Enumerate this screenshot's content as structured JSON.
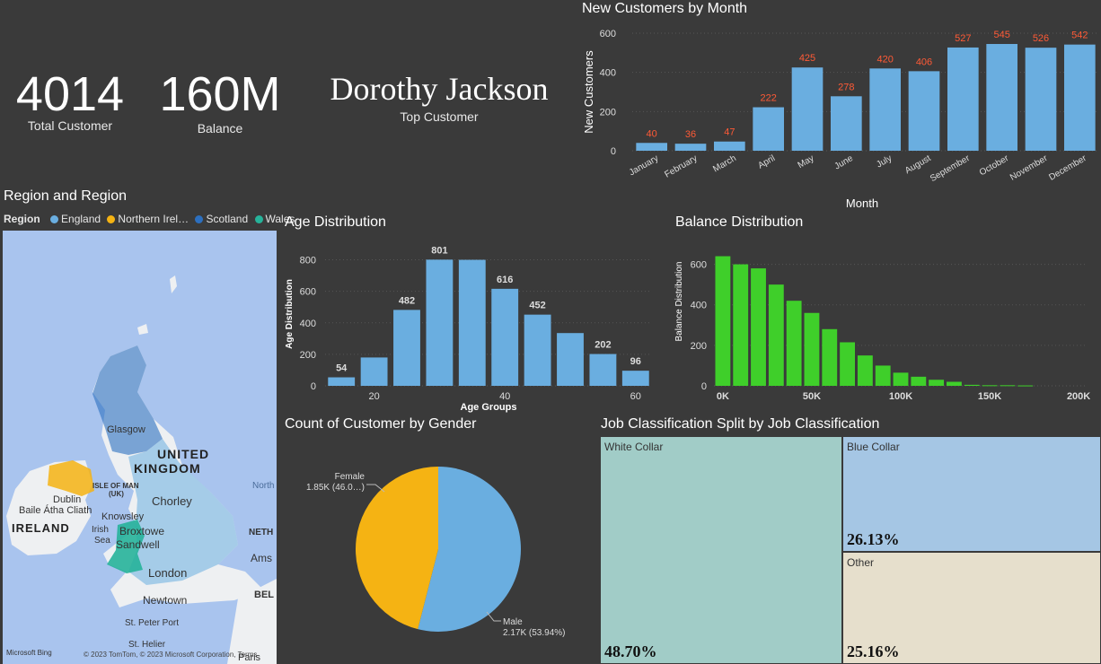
{
  "kpis": {
    "total_customer": {
      "value": "4014",
      "label": "Total Customer"
    },
    "balance": {
      "value": "160M",
      "label": "Balance"
    },
    "top_customer": {
      "value": "Dorothy Jackson",
      "label": "Top Customer"
    }
  },
  "map": {
    "title": "Region and Region",
    "legend_label": "Region",
    "legend": [
      {
        "name": "England",
        "color": "#6aaee0"
      },
      {
        "name": "Northern Irel…",
        "color": "#f5b313"
      },
      {
        "name": "Scotland",
        "color": "#2c6fbf"
      },
      {
        "name": "Wales",
        "color": "#26b39a"
      }
    ],
    "places": {
      "united": "UNITED",
      "kingdom": "KINGDOM",
      "ireland": "IRELAND",
      "glasgow": "Glasgow",
      "dublin": "Dublin",
      "baile": "Baile Átha Cliath",
      "isle": "ISLE OF MAN",
      "uk": "(UK)",
      "chorley": "Chorley",
      "knowsley": "Knowsley",
      "broxtowe": "Broxtowe",
      "sandwell": "Sandwell",
      "irish": "Irish",
      "sea": "Sea",
      "london": "London",
      "newtown": "Newtown",
      "stpeter": "St. Peter Port",
      "sthelier": "St. Helier",
      "north": "North",
      "neth": "NETH",
      "ams": "Ams",
      "bel": "BEL",
      "paris": "Paris"
    },
    "attribution": "© 2023 TomTom, © 2023 Microsoft Corporation, Terms",
    "bing": "Microsoft Bing"
  },
  "chart_data": [
    {
      "id": "new_customers",
      "type": "bar",
      "title": "New Customers by Month",
      "xlabel": "Month",
      "ylabel": "New Customers",
      "categories": [
        "January",
        "February",
        "March",
        "April",
        "May",
        "June",
        "July",
        "August",
        "September",
        "October",
        "November",
        "December"
      ],
      "values": [
        40,
        36,
        47,
        222,
        425,
        278,
        420,
        406,
        527,
        545,
        526,
        542
      ],
      "ylim": [
        0,
        600
      ],
      "yticks": [
        0,
        200,
        400,
        600
      ],
      "color": "#6aaee0",
      "label_color": "#ff5a36"
    },
    {
      "id": "age",
      "type": "bar",
      "title": "Age Distribution",
      "xlabel": "Age Groups",
      "ylabel": "Age Distribution",
      "x": [
        15,
        20,
        25,
        30,
        35,
        40,
        45,
        50,
        55,
        60
      ],
      "values": [
        54,
        180,
        482,
        801,
        800,
        616,
        452,
        335,
        202,
        96
      ],
      "data_labels": [
        "54",
        "",
        "482",
        "801",
        "",
        "616",
        "452",
        "",
        "202",
        "96"
      ],
      "ylim": [
        0,
        900
      ],
      "yticks": [
        0,
        200,
        400,
        600,
        800
      ],
      "xticks": [
        20,
        40,
        60
      ],
      "color": "#6aaee0"
    },
    {
      "id": "balance",
      "type": "bar",
      "title": "Balance Distribution",
      "xlabel": "",
      "ylabel": "Balance Distribution",
      "x": [
        0,
        10,
        20,
        30,
        40,
        50,
        60,
        70,
        80,
        90,
        100,
        110,
        120,
        130,
        140,
        150,
        160,
        170
      ],
      "values": [
        640,
        600,
        580,
        500,
        420,
        360,
        280,
        215,
        150,
        100,
        65,
        45,
        30,
        20,
        5,
        3,
        3,
        2
      ],
      "ylim": [
        0,
        700
      ],
      "yticks": [
        0,
        200,
        400,
        600
      ],
      "xticks": [
        "0K",
        "50K",
        "100K",
        "150K",
        "200K"
      ],
      "xtick_values": [
        0,
        50,
        100,
        150,
        200
      ],
      "color": "#3fcf2a"
    },
    {
      "id": "gender",
      "type": "pie",
      "title": "Count of Customer by Gender",
      "slices": [
        {
          "name": "Male",
          "value": 2.17,
          "label": "2.17K (53.94%)",
          "color": "#6aaee0"
        },
        {
          "name": "Female",
          "value": 1.85,
          "label": "1.85K (46.0…)",
          "color": "#f5b313"
        }
      ]
    },
    {
      "id": "job",
      "type": "treemap",
      "title": "Job Classification Split by Job Classification",
      "items": [
        {
          "name": "White Collar",
          "value": 48.7,
          "label": "48.70%",
          "color": "#a1ccc7"
        },
        {
          "name": "Blue Collar",
          "value": 26.13,
          "label": "26.13%",
          "color": "#a5c6e4"
        },
        {
          "name": "Other",
          "value": 25.16,
          "label": "25.16%",
          "color": "#e6dfcc"
        }
      ]
    }
  ]
}
